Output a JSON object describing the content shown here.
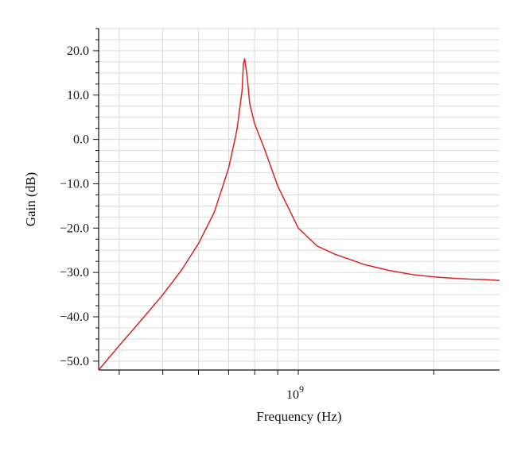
{
  "chart_data": {
    "type": "line",
    "title": "",
    "xlabel": "Frequency (Hz)",
    "ylabel": "Gain (dB)",
    "x_scale": "log",
    "xlim": [
      360000000,
      2800000000
    ],
    "ylim": [
      -52.0,
      25.0
    ],
    "grid": true,
    "legend": "none",
    "line_color": "#d62424",
    "grid_color": "#d9d9d9",
    "axis_color": "#111111",
    "x_tick_labels": [
      {
        "value": 1000000000,
        "base": "10",
        "exponent": "9"
      }
    ],
    "y_ticks": [
      {
        "value": 20,
        "label": "20.0"
      },
      {
        "value": 10,
        "label": "10.0"
      },
      {
        "value": 0,
        "label": "0.0"
      },
      {
        "value": -10,
        "label": "−10.0"
      },
      {
        "value": -20,
        "label": "−20.0"
      },
      {
        "value": -30,
        "label": "−30.0"
      },
      {
        "value": -40,
        "label": "−40.0"
      },
      {
        "value": -50,
        "label": "−50.0"
      }
    ],
    "series": [
      {
        "x": [
          360000000,
          400000000,
          450000000,
          500000000,
          550000000,
          600000000,
          650000000,
          700000000,
          730000000,
          750000000,
          755000000,
          760000000,
          770000000,
          780000000,
          800000000,
          840000000,
          900000000,
          1000000000,
          1100000000,
          1200000000,
          1400000000,
          1600000000,
          1800000000,
          2000000000,
          2200000000,
          2400000000,
          2600000000,
          2800000000
        ],
        "y": [
          -52.0,
          -46.5,
          -40.5,
          -35.0,
          -29.5,
          -23.5,
          -16.5,
          -6.5,
          2.0,
          11.0,
          17.0,
          18.2,
          14.0,
          8.0,
          3.5,
          -2.0,
          -10.5,
          -20.0,
          -24.0,
          -25.8,
          -28.2,
          -29.6,
          -30.5,
          -31.0,
          -31.3,
          -31.5,
          -31.6,
          -31.8
        ]
      }
    ]
  }
}
